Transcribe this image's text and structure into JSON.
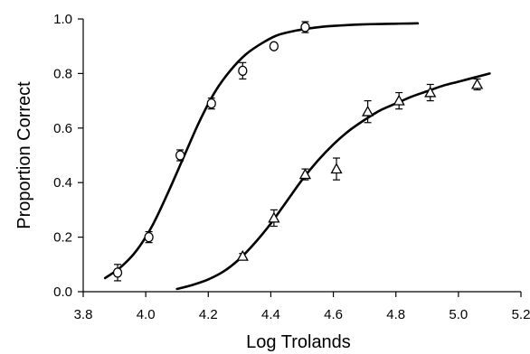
{
  "chart_data": {
    "type": "scatter",
    "xlabel": "Log Trolands",
    "ylabel": "Proportion Correct",
    "xlim": [
      3.8,
      5.2
    ],
    "ylim": [
      0.0,
      1.0
    ],
    "xticks": [
      "3.8",
      "4.0",
      "4.2",
      "4.4",
      "4.6",
      "4.8",
      "5.0",
      "5.2"
    ],
    "yticks": [
      "0.0",
      "0.2",
      "0.4",
      "0.6",
      "0.8",
      "1.0"
    ],
    "grid": false,
    "legend": "none",
    "series": [
      {
        "marker": "circle",
        "points": [
          {
            "x": 3.91,
            "y": 0.07,
            "err": 0.03
          },
          {
            "x": 4.01,
            "y": 0.2,
            "err": 0.02
          },
          {
            "x": 4.11,
            "y": 0.5,
            "err": 0.02
          },
          {
            "x": 4.21,
            "y": 0.69,
            "err": 0.02
          },
          {
            "x": 4.31,
            "y": 0.81,
            "err": 0.03
          },
          {
            "x": 4.41,
            "y": 0.9,
            "err": 0.01
          },
          {
            "x": 4.51,
            "y": 0.97,
            "err": 0.02
          }
        ],
        "fit": {
          "x": [
            3.87,
            3.92,
            3.97,
            4.02,
            4.07,
            4.12,
            4.17,
            4.22,
            4.27,
            4.32,
            4.37,
            4.42,
            4.47,
            4.52,
            4.57,
            4.62,
            4.67,
            4.72,
            4.77,
            4.82,
            4.87
          ],
          "y": [
            0.05,
            0.09,
            0.15,
            0.24,
            0.36,
            0.49,
            0.62,
            0.73,
            0.81,
            0.87,
            0.91,
            0.94,
            0.955,
            0.965,
            0.972,
            0.976,
            0.979,
            0.981,
            0.982,
            0.983,
            0.984
          ]
        }
      },
      {
        "marker": "triangle",
        "points": [
          {
            "x": 4.31,
            "y": 0.13,
            "err": 0.01
          },
          {
            "x": 4.41,
            "y": 0.27,
            "err": 0.03
          },
          {
            "x": 4.51,
            "y": 0.43,
            "err": 0.02
          },
          {
            "x": 4.61,
            "y": 0.45,
            "err": 0.04
          },
          {
            "x": 4.71,
            "y": 0.66,
            "err": 0.04
          },
          {
            "x": 4.81,
            "y": 0.7,
            "err": 0.03
          },
          {
            "x": 4.91,
            "y": 0.73,
            "err": 0.03
          },
          {
            "x": 5.06,
            "y": 0.76,
            "err": 0.02
          }
        ],
        "fit": {
          "x": [
            4.1,
            4.15,
            4.2,
            4.25,
            4.3,
            4.35,
            4.4,
            4.45,
            4.5,
            4.55,
            4.6,
            4.65,
            4.7,
            4.75,
            4.8,
            4.85,
            4.9,
            4.95,
            5.0,
            5.05,
            5.1
          ],
          "y": [
            0.01,
            0.025,
            0.045,
            0.075,
            0.12,
            0.18,
            0.25,
            0.33,
            0.41,
            0.48,
            0.54,
            0.59,
            0.63,
            0.665,
            0.69,
            0.715,
            0.735,
            0.755,
            0.77,
            0.785,
            0.8
          ]
        }
      }
    ]
  }
}
